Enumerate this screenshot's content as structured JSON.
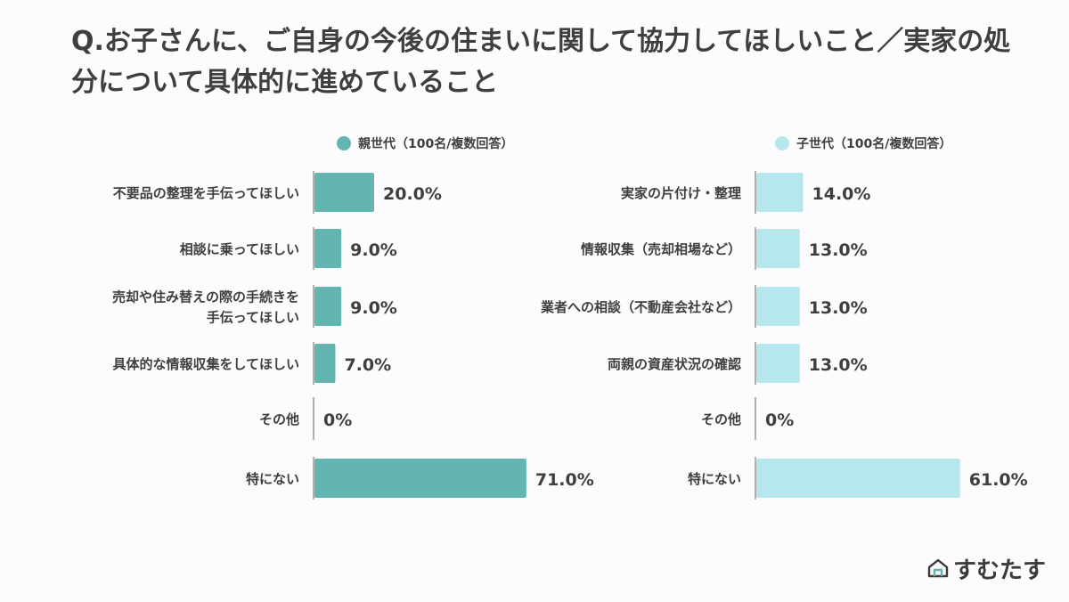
{
  "title": "Q.お子さんに、ご自身の今後の住まいに関して協力してほしいこと／実家の処分について具体的に進めていること",
  "brand": {
    "name": "すむたす",
    "icon": "house-logo-icon"
  },
  "colors": {
    "parent": "#62b5b1",
    "child": "#b6e7ec",
    "axis": "#9a9a9a",
    "text": "#3f3f3f"
  },
  "chart_data": [
    {
      "type": "bar",
      "orientation": "horizontal",
      "legend": "親世代（100名/複数回答）",
      "unit": "%",
      "categories": [
        [
          "不要品の整理を手伝ってほしい"
        ],
        [
          "相談に乗ってほしい"
        ],
        [
          "売却や住み替えの際の手続きを",
          "手伝ってほしい"
        ],
        [
          "具体的な情報収集をしてほしい"
        ],
        [
          "その他"
        ],
        [
          "特にない"
        ]
      ],
      "values": [
        20,
        9,
        9,
        7,
        0,
        71
      ],
      "labels": [
        "20.0%",
        "9.0%",
        "9.0%",
        "7.0%",
        "0%",
        "71.0%"
      ]
    },
    {
      "type": "bar",
      "orientation": "horizontal",
      "legend": "子世代（100名/複数回答）",
      "unit": "%",
      "categories": [
        [
          "実家の片付け・整理"
        ],
        [
          "情報収集（売却相場など）"
        ],
        [
          "業者への相談（不動産会社など）"
        ],
        [
          "両親の資産状況の確認"
        ],
        [
          "その他"
        ],
        [
          "特にない"
        ]
      ],
      "values": [
        14,
        13,
        13,
        13,
        0,
        61
      ],
      "labels": [
        "14.0%",
        "13.0%",
        "13.0%",
        "13.0%",
        "0%",
        "61.0%"
      ]
    }
  ]
}
